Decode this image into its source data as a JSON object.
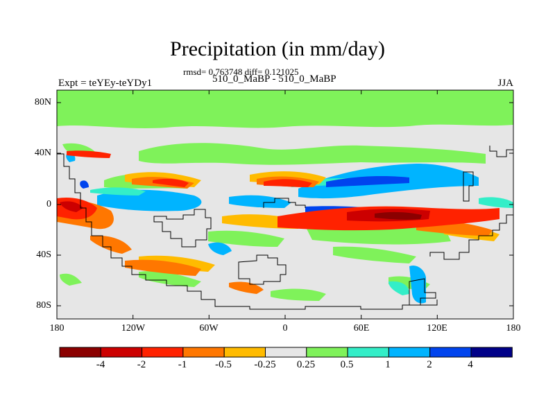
{
  "title": "Precipitation (in mm/day)",
  "subtitle": "rmsd= 0.763748 diff= 0.121025",
  "left_label": "Expt = teYEy-teYDy1",
  "center_label": "510_0_MaBP - 510_0_MaBP",
  "right_label": "JJA",
  "lat_labels": [
    "80N",
    "40N",
    "0",
    "40S",
    "80S"
  ],
  "lon_labels": [
    "180",
    "120W",
    "60W",
    "0",
    "60E",
    "120E",
    "180"
  ],
  "colorbar": {
    "labels": [
      "-4",
      "-2",
      "-1",
      "-0.5",
      "-0.25",
      "0.25",
      "0.5",
      "1",
      "2",
      "4"
    ],
    "colors": [
      "#8b0000",
      "#cc0000",
      "#ff2200",
      "#ff7700",
      "#ffbb00",
      "#e6e6e6",
      "#7ff25a",
      "#33eec8",
      "#00b4ff",
      "#0044ee",
      "#000088"
    ]
  }
}
